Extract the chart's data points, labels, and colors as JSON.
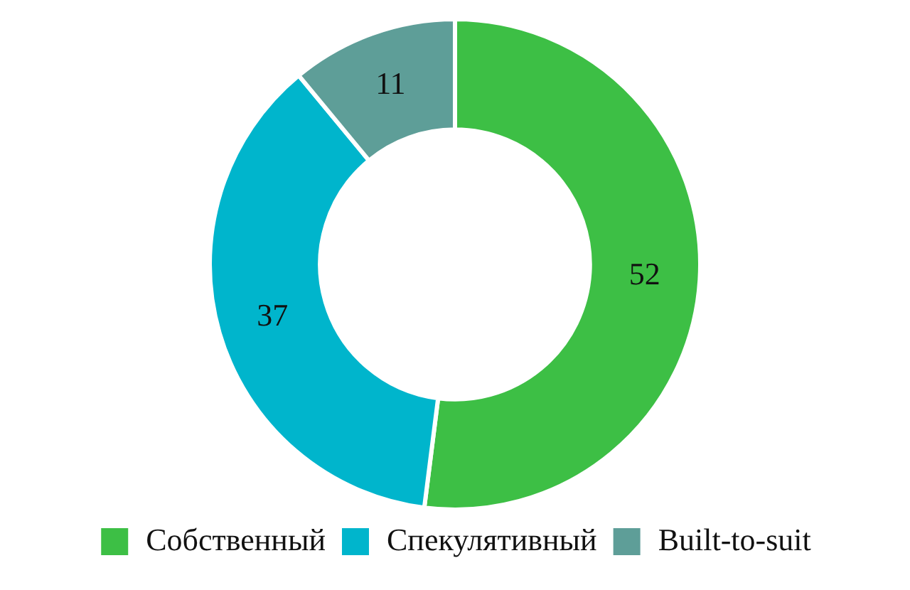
{
  "chart_data": {
    "type": "donut",
    "categories": [
      "Собственный",
      "Спекулятивный",
      "Built-to-suit"
    ],
    "values": [
      52,
      37,
      11
    ],
    "colors": [
      "#3dbf45",
      "#00b5cc",
      "#5e9e98"
    ],
    "data_labels": true,
    "legend": "bottom"
  }
}
